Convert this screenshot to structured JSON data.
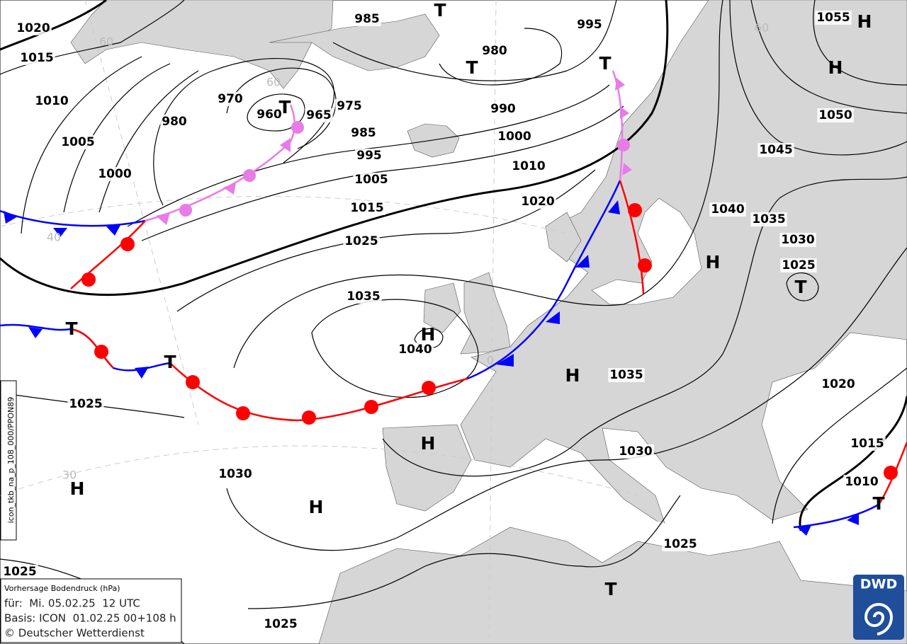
{
  "map": {
    "isobar_labels": [
      "1020",
      "1015",
      "1010",
      "1005",
      "1000",
      "980",
      "970",
      "960",
      "965",
      "975",
      "985",
      "985",
      "995",
      "1005",
      "1015",
      "1025",
      "1035",
      "1040",
      "995",
      "980",
      "990",
      "1000",
      "1010",
      "1020",
      "1040",
      "1035",
      "1030",
      "1025",
      "1050",
      "1045",
      "1055",
      "1035",
      "1020",
      "1015",
      "1010",
      "1030",
      "1025",
      "1030",
      "1025",
      "1025",
      "1025"
    ],
    "pressure_centers": [
      "T",
      "T",
      "T",
      "T",
      "H",
      "H",
      "H",
      "T",
      "H",
      "H",
      "H",
      "H",
      "H",
      "T",
      "T",
      "T",
      "T"
    ],
    "grid_labels": [
      "60",
      "60",
      "40",
      "30",
      "0",
      "60"
    ],
    "side_label": "icon_tkb_na_p_108_000/PPON89",
    "info_box": {
      "title": "Vorhersage Bodendruck (hPa)",
      "valid": "für:  Mi. 05.02.25  12 UTC",
      "base": "Basis: ICON  01.02.25 00+108 h",
      "copyright": "© Deutscher Wetterdienst"
    },
    "logo": "DWD"
  }
}
